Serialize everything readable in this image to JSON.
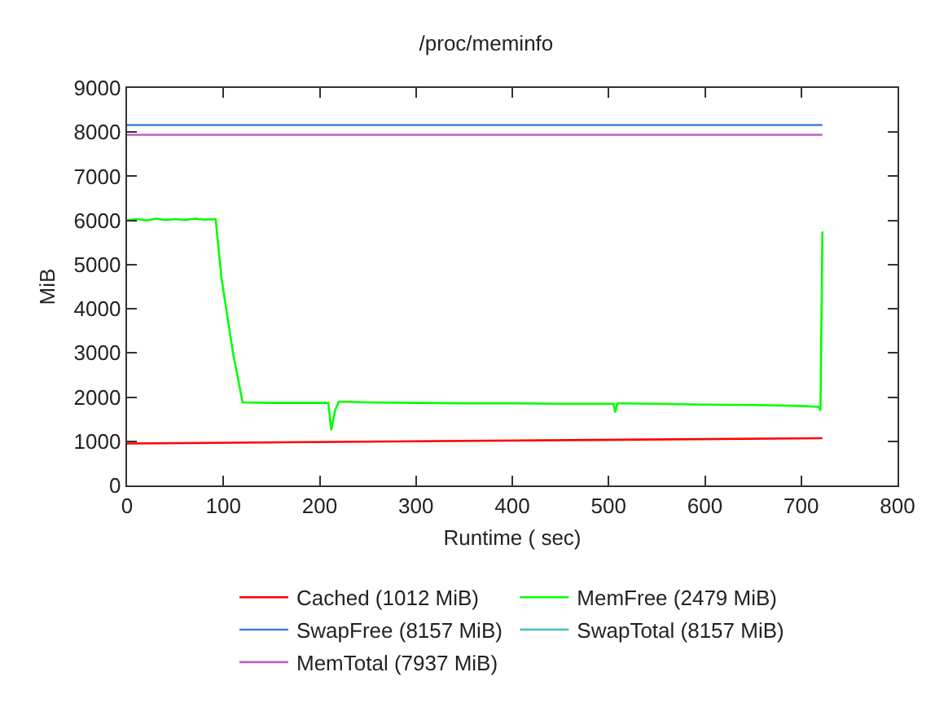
{
  "chart_data": {
    "type": "line",
    "title": "/proc/meminfo",
    "xlabel": "Runtime ( sec)",
    "ylabel": "MiB",
    "xlim": [
      0,
      800
    ],
    "xticks": [
      0,
      100,
      200,
      300,
      400,
      500,
      600,
      700,
      800
    ],
    "ylim": [
      0,
      9000
    ],
    "yticks": [
      0,
      1000,
      2000,
      3000,
      4000,
      5000,
      6000,
      7000,
      8000,
      9000
    ],
    "grid": false,
    "legend": "bottom",
    "marker": "none",
    "line_style": "solid",
    "series": [
      {
        "name": "Cached (1012 MiB)",
        "color": "#ff0000",
        "x": [
          0,
          722
        ],
        "values": [
          950,
          1070
        ]
      },
      {
        "name": "MemFree (2479 MiB)",
        "color": "#00ff00",
        "x": [
          0,
          10,
          20,
          30,
          40,
          50,
          60,
          70,
          80,
          92,
          98,
          110,
          120,
          150,
          200,
          209,
          212,
          216,
          220,
          250,
          300,
          350,
          400,
          450,
          500,
          505,
          507,
          509,
          550,
          600,
          650,
          700,
          718,
          720,
          722
        ],
        "values": [
          6000,
          6030,
          6000,
          6040,
          6010,
          6030,
          6010,
          6040,
          6020,
          6030,
          4700,
          3000,
          1880,
          1870,
          1870,
          1870,
          1250,
          1700,
          1900,
          1880,
          1870,
          1860,
          1860,
          1850,
          1850,
          1850,
          1650,
          1860,
          1850,
          1830,
          1820,
          1800,
          1780,
          1700,
          5750
        ]
      },
      {
        "name": "SwapFree (8157 MiB)",
        "color": "#3f7fdf",
        "x": [
          0,
          722
        ],
        "values": [
          8160,
          8160
        ]
      },
      {
        "name": "SwapTotal (8157 MiB)",
        "color": "#40c0c0",
        "values": [
          null,
          null
        ]
      },
      {
        "name": "MemTotal (7937 MiB)",
        "color": "#c060c0",
        "x": [
          0,
          722
        ],
        "values": [
          7940,
          7940
        ]
      }
    ]
  }
}
